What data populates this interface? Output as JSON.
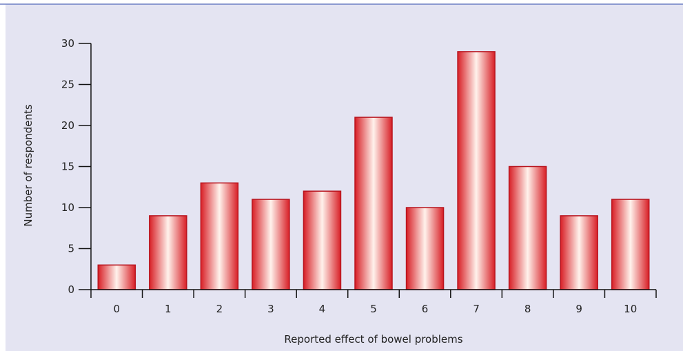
{
  "chart_data": {
    "type": "bar",
    "categories": [
      "0",
      "1",
      "2",
      "3",
      "4",
      "5",
      "6",
      "7",
      "8",
      "9",
      "10"
    ],
    "values": [
      3,
      9,
      13,
      11,
      12,
      21,
      10,
      29,
      15,
      9,
      11
    ],
    "xlabel": "Reported effect of bowel problems",
    "ylabel": "Number of respondents",
    "ylim": [
      0,
      30
    ],
    "yticks": [
      0,
      5,
      10,
      15,
      20,
      25,
      30
    ],
    "grid": false,
    "legend": "none",
    "colors": {
      "background": "#e4e4f2",
      "frame_line": "#6d7fc4",
      "bar_edge": "#b8141e",
      "bar_dark": "#d81f26",
      "bar_light": "#fff2ec",
      "axis": "#111111"
    }
  }
}
